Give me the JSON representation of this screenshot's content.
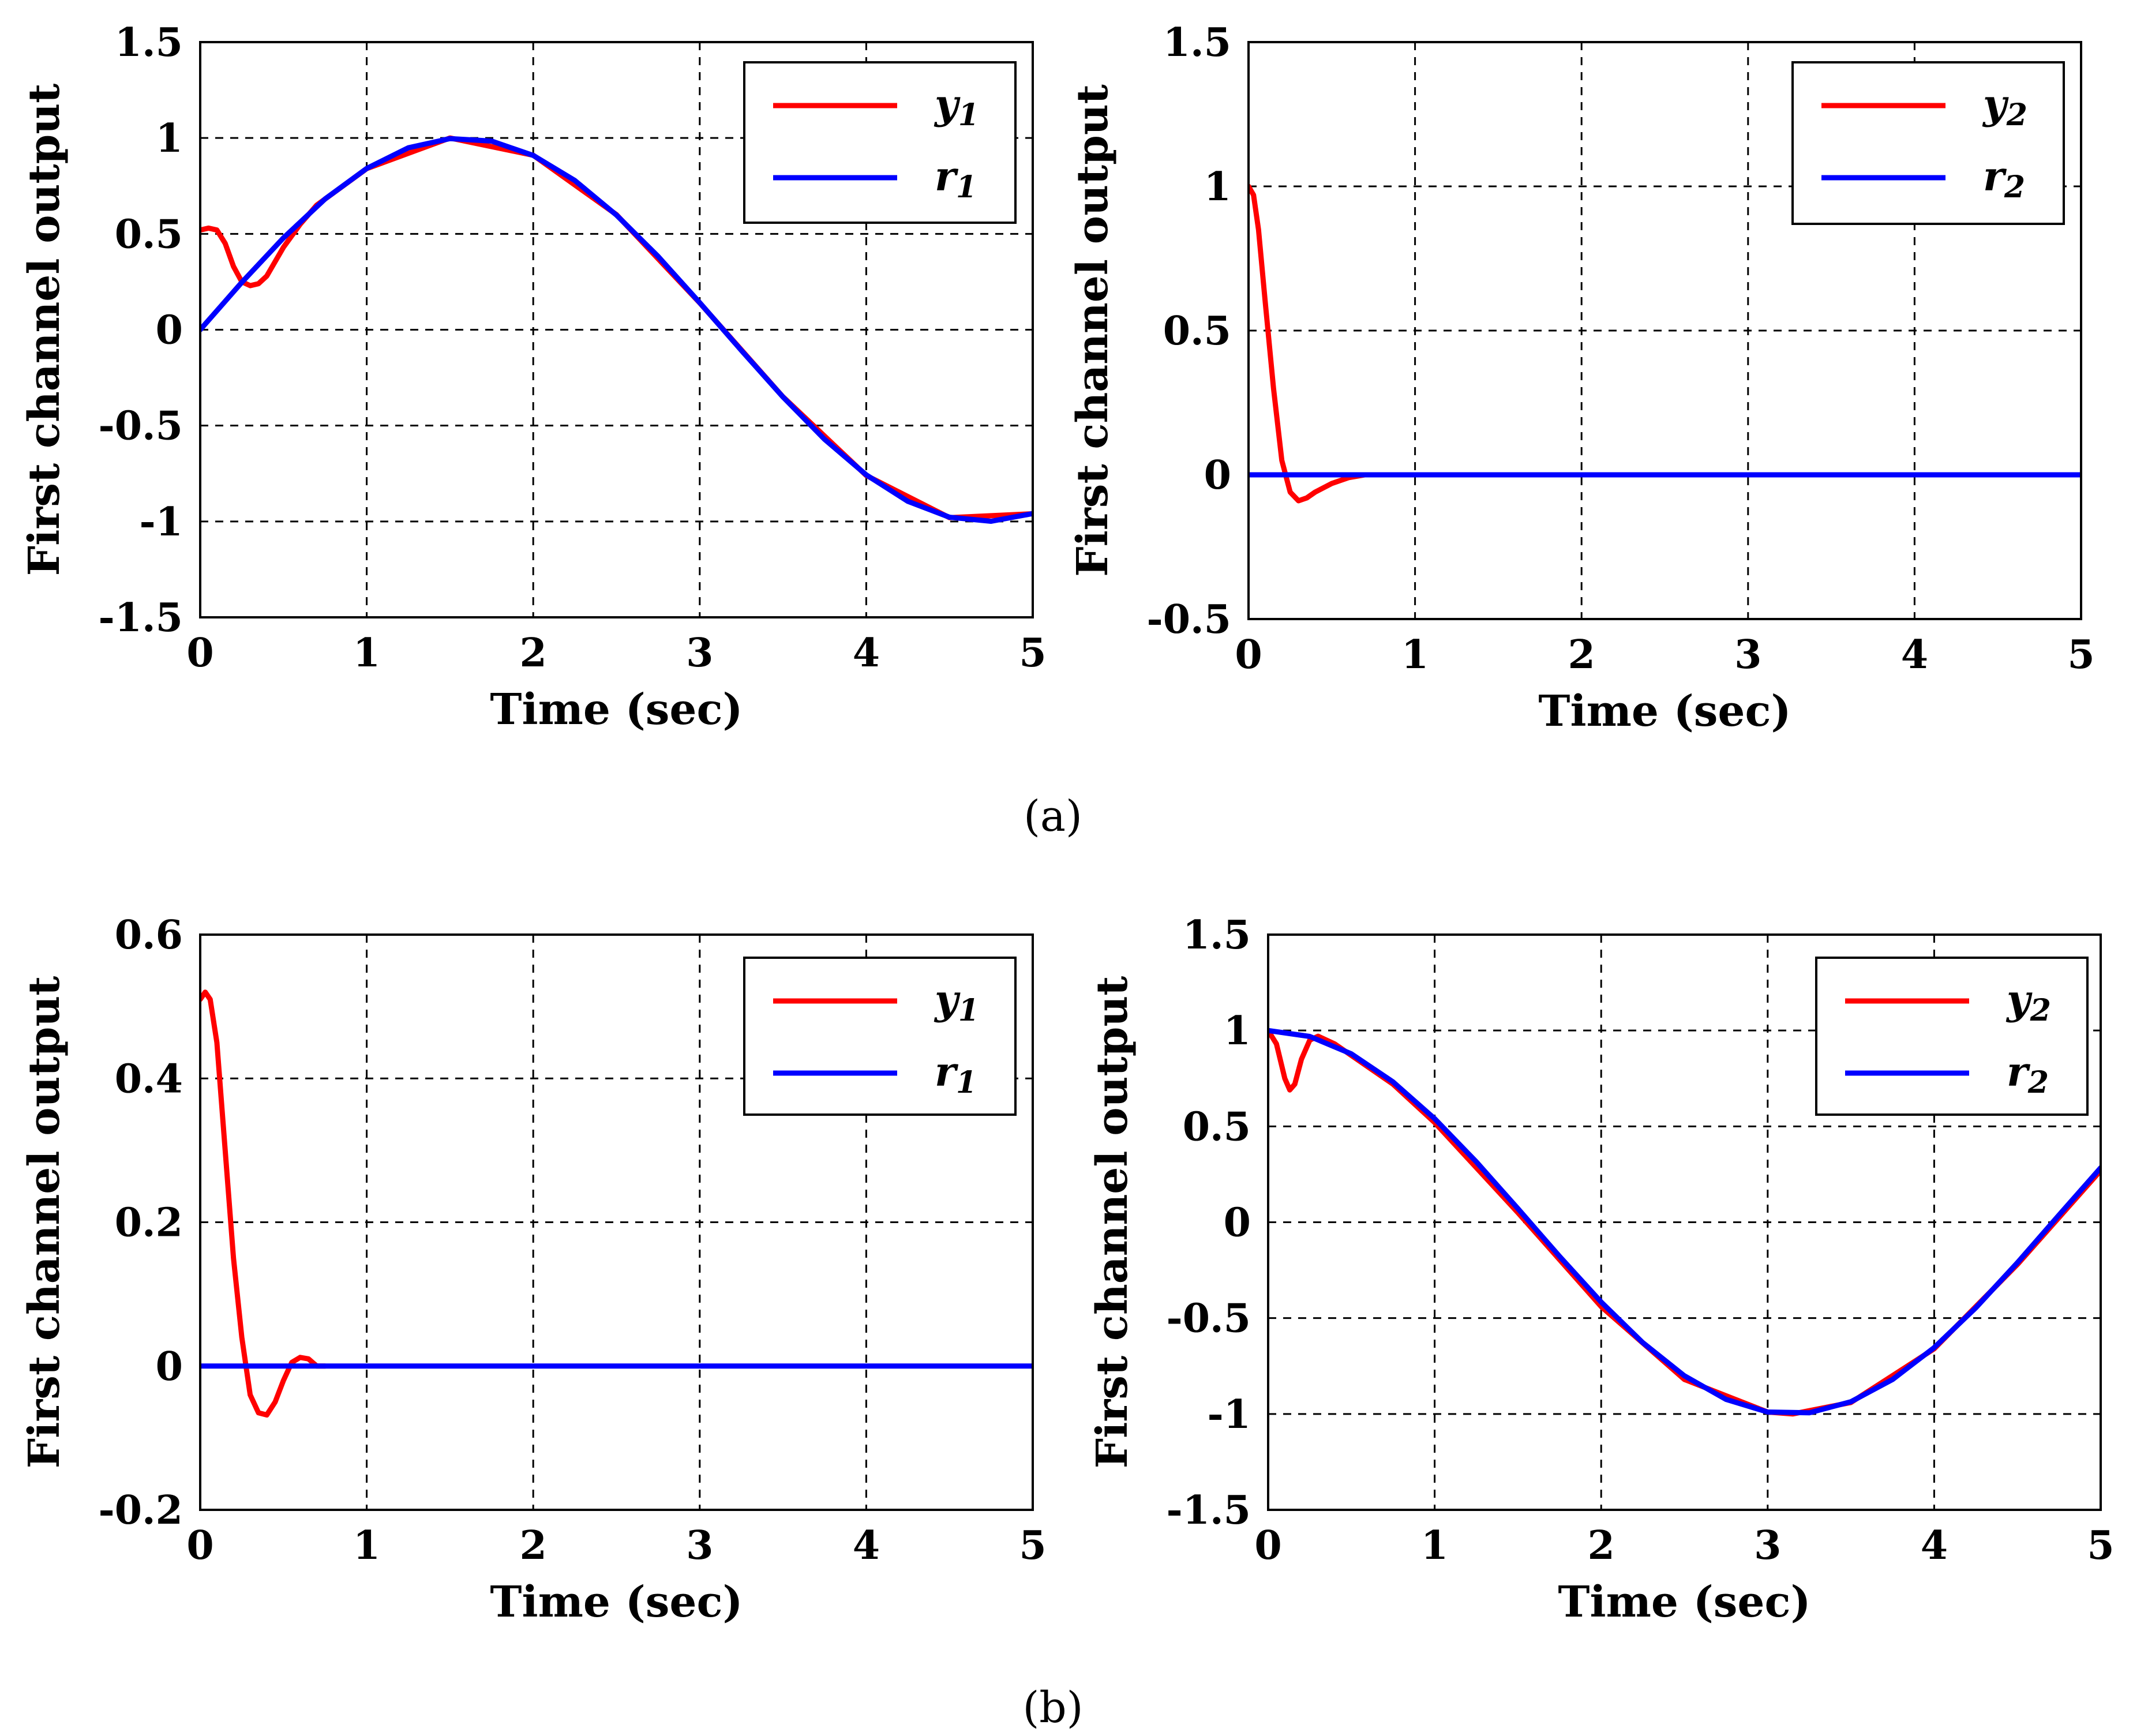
{
  "figure": {
    "caption_a": "(a)",
    "caption_b": "(b)"
  },
  "chart_data": [
    {
      "id": "a-left",
      "type": "line",
      "xlabel": "Time (sec)",
      "ylabel": "First channel output",
      "xlim": [
        0,
        5
      ],
      "ylim": [
        -1.5,
        1.5
      ],
      "xticks": [
        0,
        1,
        2,
        3,
        4,
        5
      ],
      "yticks": [
        -1.5,
        -1,
        -0.5,
        0,
        0.5,
        1,
        1.5
      ],
      "xtick_labels": [
        "0",
        "1",
        "2",
        "3",
        "4",
        "5"
      ],
      "ytick_labels": [
        "-1.5",
        "-1",
        "-0.5",
        "0",
        "0.5",
        "1",
        "1.5"
      ],
      "grid": true,
      "legend_position": "top-right",
      "series": [
        {
          "name": "y1",
          "label_base": "y",
          "label_sub": "1",
          "color": "#ff0000",
          "x": [
            0,
            0.05,
            0.1,
            0.15,
            0.2,
            0.25,
            0.3,
            0.35,
            0.4,
            0.5,
            0.6,
            0.7,
            1.0,
            1.5,
            2.0,
            2.5,
            3.0,
            3.5,
            4.0,
            4.5,
            5.0
          ],
          "y": [
            0.52,
            0.53,
            0.52,
            0.45,
            0.33,
            0.25,
            0.23,
            0.24,
            0.28,
            0.43,
            0.55,
            0.65,
            0.84,
            1.0,
            0.91,
            0.6,
            0.14,
            -0.35,
            -0.76,
            -0.98,
            -0.96
          ]
        },
        {
          "name": "r1",
          "label_base": "r",
          "label_sub": "1",
          "color": "#0000ff",
          "x": [
            0,
            0.25,
            0.5,
            0.75,
            1.0,
            1.25,
            1.5,
            1.75,
            2.0,
            2.25,
            2.5,
            2.75,
            3.0,
            3.25,
            3.5,
            3.75,
            4.0,
            4.25,
            4.5,
            4.75,
            5.0
          ],
          "y": [
            0,
            0.247,
            0.479,
            0.682,
            0.841,
            0.949,
            0.997,
            0.984,
            0.909,
            0.778,
            0.598,
            0.382,
            0.141,
            -0.108,
            -0.351,
            -0.572,
            -0.757,
            -0.895,
            -0.978,
            -0.999,
            -0.959
          ]
        }
      ]
    },
    {
      "id": "a-right",
      "type": "line",
      "xlabel": "Time (sec)",
      "ylabel": "First channel output",
      "xlim": [
        0,
        5
      ],
      "ylim": [
        -0.5,
        1.5
      ],
      "xticks": [
        0,
        1,
        2,
        3,
        4,
        5
      ],
      "yticks": [
        -0.5,
        0,
        0.5,
        1,
        1.5
      ],
      "xtick_labels": [
        "0",
        "1",
        "2",
        "3",
        "4",
        "5"
      ],
      "ytick_labels": [
        "-0.5",
        "0",
        "0.5",
        "1",
        "1.5"
      ],
      "grid": true,
      "legend_position": "top-right",
      "series": [
        {
          "name": "y2",
          "label_base": "y",
          "label_sub": "2",
          "color": "#ff0000",
          "x": [
            0,
            0.03,
            0.06,
            0.1,
            0.15,
            0.2,
            0.25,
            0.3,
            0.35,
            0.4,
            0.5,
            0.6,
            0.7
          ],
          "y": [
            1.0,
            0.97,
            0.85,
            0.6,
            0.3,
            0.05,
            -0.06,
            -0.09,
            -0.08,
            -0.06,
            -0.03,
            -0.01,
            0.0
          ]
        },
        {
          "name": "r2",
          "label_base": "r",
          "label_sub": "2",
          "color": "#0000ff",
          "x": [
            0,
            5
          ],
          "y": [
            0,
            0
          ]
        }
      ]
    },
    {
      "id": "b-left",
      "type": "line",
      "xlabel": "Time (sec)",
      "ylabel": "First channel output",
      "xlim": [
        0,
        5
      ],
      "ylim": [
        -0.2,
        0.6
      ],
      "xticks": [
        0,
        1,
        2,
        3,
        4,
        5
      ],
      "yticks": [
        -0.2,
        0,
        0.2,
        0.4,
        0.6
      ],
      "xtick_labels": [
        "0",
        "1",
        "2",
        "3",
        "4",
        "5"
      ],
      "ytick_labels": [
        "-0.2",
        "0",
        "0.2",
        "0.4",
        "0.6"
      ],
      "grid": true,
      "legend_position": "top-right",
      "series": [
        {
          "name": "y1",
          "label_base": "y",
          "label_sub": "1",
          "color": "#ff0000",
          "x": [
            0,
            0.03,
            0.06,
            0.1,
            0.15,
            0.2,
            0.25,
            0.3,
            0.35,
            0.4,
            0.45,
            0.5,
            0.55,
            0.6,
            0.65,
            0.7,
            0.75
          ],
          "y": [
            0.51,
            0.52,
            0.51,
            0.45,
            0.3,
            0.15,
            0.04,
            -0.04,
            -0.065,
            -0.068,
            -0.05,
            -0.02,
            0.005,
            0.012,
            0.01,
            0.0,
            0.0
          ]
        },
        {
          "name": "r1",
          "label_base": "r",
          "label_sub": "1",
          "color": "#0000ff",
          "x": [
            0,
            5
          ],
          "y": [
            0,
            0
          ]
        }
      ]
    },
    {
      "id": "b-right",
      "type": "line",
      "xlabel": "Time (sec)",
      "ylabel": "First channel output",
      "xlim": [
        0,
        5
      ],
      "ylim": [
        -1.5,
        1.5
      ],
      "xticks": [
        0,
        1,
        2,
        3,
        4,
        5
      ],
      "yticks": [
        -1.5,
        -1,
        -0.5,
        0,
        0.5,
        1,
        1.5
      ],
      "xtick_labels": [
        "0",
        "1",
        "2",
        "3",
        "4",
        "5"
      ],
      "ytick_labels": [
        "-1.5",
        "-1",
        "-0.5",
        "0",
        "0.5",
        "1",
        "1.5"
      ],
      "grid": true,
      "legend_position": "top-right",
      "series": [
        {
          "name": "y2",
          "label_base": "y",
          "label_sub": "2",
          "color": "#ff0000",
          "x": [
            0,
            0.05,
            0.1,
            0.13,
            0.16,
            0.2,
            0.25,
            0.3,
            0.4,
            0.5,
            0.75,
            1.0,
            1.5,
            2.0,
            2.5,
            3.0,
            3.15,
            3.5,
            4.0,
            4.5,
            5.0
          ],
          "y": [
            1.0,
            0.93,
            0.75,
            0.69,
            0.72,
            0.85,
            0.95,
            0.97,
            0.93,
            0.87,
            0.72,
            0.52,
            0.05,
            -0.44,
            -0.82,
            -0.99,
            -1.0,
            -0.94,
            -0.66,
            -0.22,
            0.27
          ]
        },
        {
          "name": "r2",
          "label_base": "r",
          "label_sub": "2",
          "color": "#0000ff",
          "x": [
            0,
            0.25,
            0.5,
            0.75,
            1.0,
            1.25,
            1.5,
            1.75,
            2.0,
            2.25,
            2.5,
            2.75,
            3.0,
            3.25,
            3.5,
            3.75,
            4.0,
            4.25,
            4.5,
            4.75,
            5.0
          ],
          "y": [
            1.0,
            0.969,
            0.878,
            0.732,
            0.54,
            0.315,
            0.071,
            -0.178,
            -0.416,
            -0.628,
            -0.801,
            -0.924,
            -0.99,
            -0.994,
            -0.936,
            -0.82,
            -0.654,
            -0.446,
            -0.211,
            0.038,
            0.284
          ]
        }
      ]
    }
  ]
}
